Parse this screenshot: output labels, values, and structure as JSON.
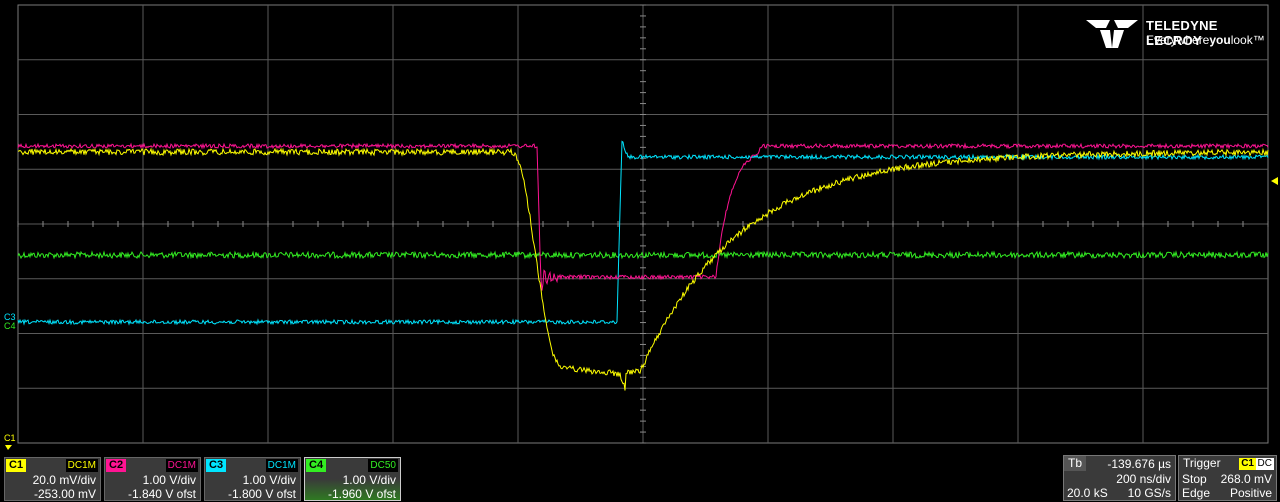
{
  "brand": {
    "name": "TELEDYNE LECROY",
    "tagline_prefix": "Everywhere",
    "tagline_bold": "you",
    "tagline_suffix": "look™"
  },
  "grid": {
    "hdiv": 10,
    "vdiv": 8
  },
  "trace_colors": {
    "C1": "#ffff00",
    "C2": "#ff1493",
    "C3": "#00e5ff",
    "C4": "#33ee22"
  },
  "markers": {
    "c1_left": "C1",
    "c3_left": "C3",
    "c4_left": "C4"
  },
  "channels": [
    {
      "id": "C1",
      "coupling": "DC1M",
      "vdiv": "20.0 mV/div",
      "offset": "-253.00 mV",
      "color": "#ffff00"
    },
    {
      "id": "C2",
      "coupling": "DC1M",
      "vdiv": "1.00 V/div",
      "offset": "-1.840 V ofst",
      "color": "#ff1493"
    },
    {
      "id": "C3",
      "coupling": "DC1M",
      "vdiv": "1.00 V/div",
      "offset": "-1.800 V ofst",
      "color": "#00e5ff"
    },
    {
      "id": "C4",
      "coupling": "DC50",
      "vdiv": "1.00 V/div",
      "offset": "-1.960 V ofst",
      "color": "#33ee22"
    }
  ],
  "timebase": {
    "label": "Tb",
    "delay": "-139.676 µs",
    "tdiv": "200 ns/div",
    "samples": "20.0 kS",
    "rate": "10 GS/s"
  },
  "trigger": {
    "label": "Trigger",
    "source": "C1",
    "coupling": "DC",
    "mode": "Stop",
    "level": "268.0 mV",
    "type": "Edge",
    "slope": "Positive"
  }
}
